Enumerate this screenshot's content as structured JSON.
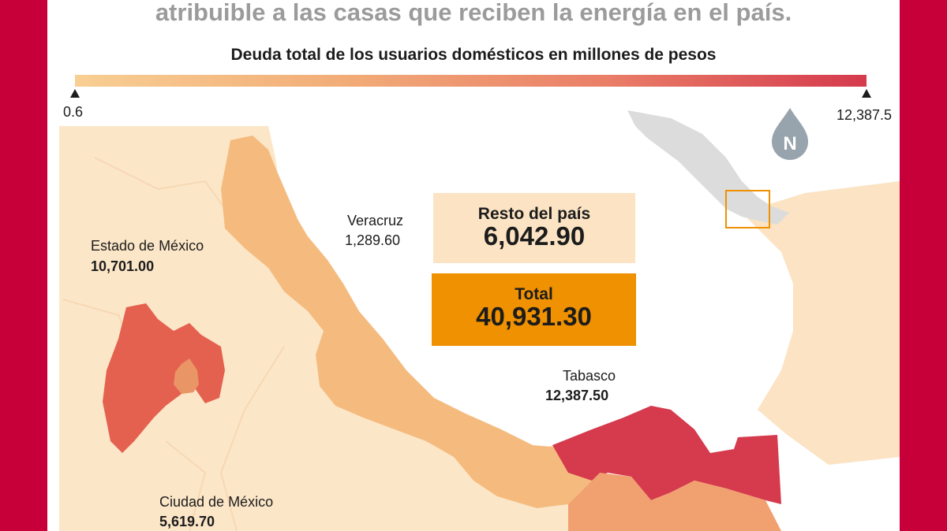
{
  "headline": "atribuible a las casas que reciben la energía en el país.",
  "scale": {
    "title": "Deuda total de los usuarios domésticos en millones de pesos",
    "min_label": "0.6",
    "max_label": "12,387.5",
    "color_low": "#f8cf93",
    "color_high": "#d53a4d"
  },
  "regions": {
    "veracruz": {
      "name": "Veracruz",
      "value": "1,289.60",
      "color": "#f5bb7e"
    },
    "estado_mexico": {
      "name": "Estado de México",
      "value": "10,701.00",
      "color": "#e4614f"
    },
    "ciudad_mexico": {
      "name": "Ciudad de México",
      "value": "5,619.70",
      "color": "#ea9565"
    },
    "tabasco": {
      "name": "Tabasco",
      "value": "12,387.50",
      "color": "#d53a4d"
    }
  },
  "boxes": {
    "rest": {
      "label": "Resto del país",
      "value": "6,042.90",
      "color": "#fbe3c3"
    },
    "total": {
      "label": "Total",
      "value": "40,931.30",
      "color": "#ef9100"
    }
  },
  "north_badge": {
    "letter": "N",
    "icon": "north-arrow-drop-icon",
    "color": "#98a4ad"
  },
  "inset": {
    "icon": "mexico-locator-map"
  }
}
